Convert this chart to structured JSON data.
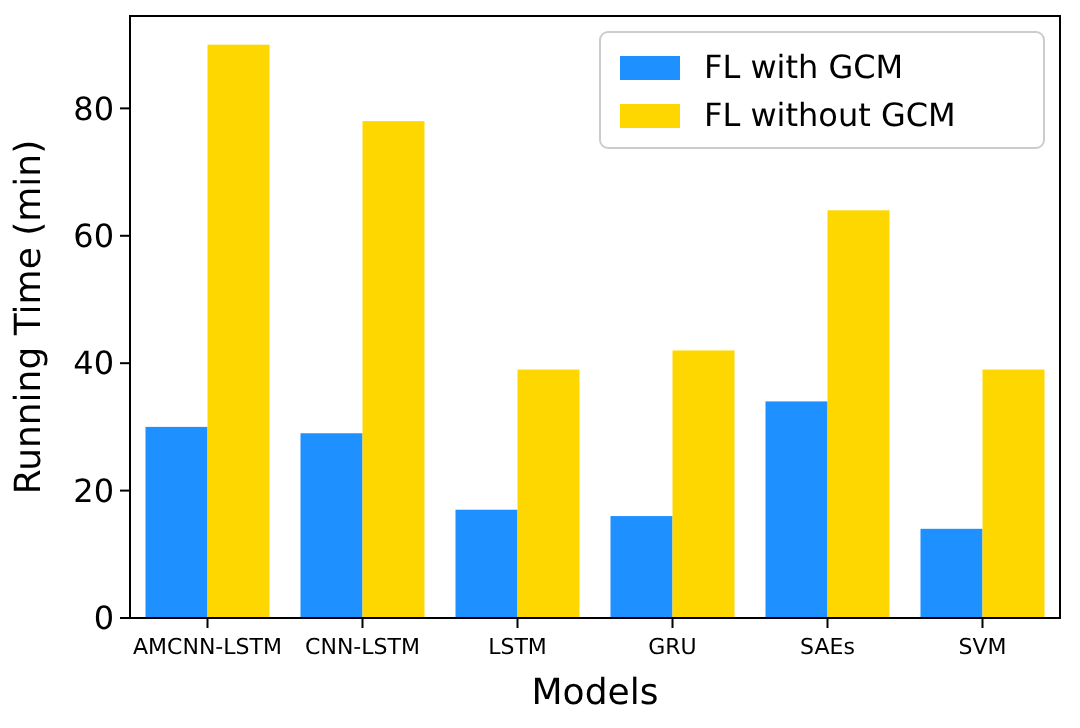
{
  "chart_data": {
    "type": "bar",
    "xlabel": "Models",
    "ylabel": "Running Time (min)",
    "categories": [
      "AMCNN-LSTM",
      "CNN-LSTM",
      "LSTM",
      "GRU",
      "SAEs",
      "SVM"
    ],
    "series": [
      {
        "name": "FL with GCM",
        "color": "#1e90ff",
        "values": [
          30,
          29,
          17,
          16,
          34,
          14
        ]
      },
      {
        "name": "FL without GCM",
        "color": "#ffd700",
        "values": [
          90,
          78,
          39,
          42,
          64,
          39
        ]
      }
    ],
    "ylim": [
      0,
      94.5
    ],
    "yticks": [
      0,
      20,
      40,
      60,
      80
    ],
    "legend": "top right"
  }
}
